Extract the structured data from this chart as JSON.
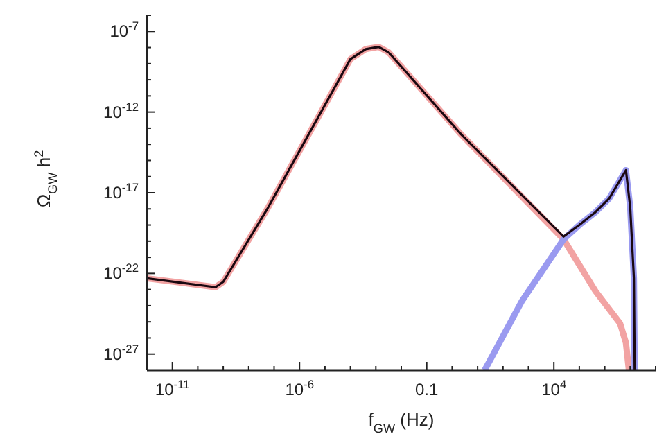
{
  "chart_data": {
    "type": "line",
    "xlabel": "f$_{GW}$ (Hz)",
    "ylabel": "Ω$_{GW}$ h$^{2}$",
    "log": "xy",
    "grid": false,
    "legend": false,
    "marker": "none",
    "line_style": "solid",
    "xlim": [
      1e-12,
      100000000.0
    ],
    "ylim": [
      1e-28,
      1e-06
    ],
    "xticks": [
      {
        "value": 1e-12,
        "label": null
      },
      {
        "value": 1e-11,
        "label": "10$^{-11}$"
      },
      {
        "value": 1e-10,
        "label": null
      },
      {
        "value": 1e-09,
        "label": null
      },
      {
        "value": 1e-08,
        "label": null
      },
      {
        "value": 1e-07,
        "label": null
      },
      {
        "value": 1e-06,
        "label": "10$^{-6}$"
      },
      {
        "value": 1e-05,
        "label": null
      },
      {
        "value": 0.0001,
        "label": null
      },
      {
        "value": 0.001,
        "label": null
      },
      {
        "value": 0.01,
        "label": null
      },
      0.1,
      {
        "value": 1,
        "label": null
      },
      {
        "value": 10,
        "label": null
      },
      {
        "value": 100,
        "label": null
      },
      {
        "value": 1000,
        "label": null
      },
      {
        "value": 10000.0,
        "label": "10$^{4}$"
      },
      {
        "value": 100000.0,
        "label": null
      },
      {
        "value": 1000000.0,
        "label": null
      },
      {
        "value": 10000000.0,
        "label": null
      },
      {
        "value": 100000000.0,
        "label": null
      }
    ],
    "yticks": [
      {
        "value": 1e-28,
        "label": null
      },
      {
        "value": 1e-27,
        "label": "10$^{-27}$"
      },
      {
        "value": 1e-26,
        "label": null
      },
      {
        "value": 1e-25,
        "label": null
      },
      {
        "value": 1e-24,
        "label": null
      },
      {
        "value": 1e-23,
        "label": null
      },
      {
        "value": 1e-22,
        "label": "10$^{-22}$"
      },
      {
        "value": 1e-21,
        "label": null
      },
      {
        "value": 1e-20,
        "label": null
      },
      {
        "value": 1e-19,
        "label": null
      },
      {
        "value": 1e-18,
        "label": null
      },
      {
        "value": 1e-17,
        "label": "10$^{-17}$"
      },
      {
        "value": 1e-16,
        "label": null
      },
      {
        "value": 1e-15,
        "label": null
      },
      {
        "value": 1e-14,
        "label": null
      },
      {
        "value": 1e-13,
        "label": null
      },
      {
        "value": 1e-12,
        "label": "10$^{-12}$"
      },
      {
        "value": 1e-11,
        "label": null
      },
      {
        "value": 1e-10,
        "label": null
      },
      {
        "value": 1e-09,
        "label": null
      },
      {
        "value": 1e-08,
        "label": null
      },
      {
        "value": 1e-07,
        "label": "10$^{-7}$"
      },
      {
        "value": 1e-06,
        "label": null
      }
    ],
    "series": [
      {
        "color": "#f2a3a3",
        "x": [
          1e-12,
          5e-10,
          1e-09,
          5.6e-08,
          0.0001,
          0.0004,
          0.0013,
          0.0032,
          2.3,
          24000.0,
          430000.0,
          4000000.0,
          6800000.0,
          8900000.0
        ],
        "values": [
          5e-23,
          1.4e-23,
          3e-23,
          1.1e-18,
          1.9e-09,
          8e-09,
          1.1e-08,
          5e-09,
          4e-14,
          1.3e-20,
          8e-24,
          8e-26,
          5e-27,
          1e-28
        ]
      },
      {
        "color": "#9a9af0",
        "x": [
          19,
          560,
          24000.0,
          100000.0,
          430000.0,
          1500000.0,
          6800000.0,
          10000000.0,
          14000000.0,
          15000000.0
        ],
        "values": [
          1e-28,
          2e-24,
          1.3e-20,
          1e-19,
          6.3e-19,
          4.5e-18,
          2.5e-16,
          1.3e-18,
          5e-23,
          1e-28
        ]
      },
      {
        "color": "#1a0810",
        "x": [
          1e-12,
          5e-10,
          1e-09,
          5.6e-08,
          0.0001,
          0.0004,
          0.0013,
          0.0032,
          2.3,
          24000.0,
          100000.0,
          430000.0,
          1500000.0,
          6800000.0,
          10000000.0,
          14000000.0,
          15000000.0
        ],
        "values": [
          5e-23,
          1.4e-23,
          3e-23,
          1.1e-18,
          1.9e-09,
          8e-09,
          1.1e-08,
          5e-09,
          4e-14,
          1.9e-20,
          1e-19,
          6.3e-19,
          4.5e-18,
          2.5e-16,
          1.3e-18,
          5e-23,
          1e-28
        ]
      }
    ]
  }
}
